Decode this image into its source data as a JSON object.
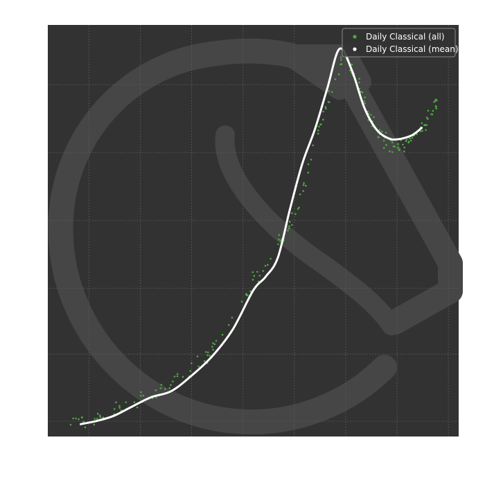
{
  "chart_data": {
    "type": "scatter",
    "title": "",
    "xlabel": "",
    "ylabel": "",
    "grid": true,
    "legend_position": "top-right",
    "xlim": [
      0,
      100
    ],
    "ylim": [
      0,
      100
    ],
    "colors": {
      "background": "#323232",
      "grid": "#5a5a5a",
      "watermark": "#464646",
      "all": "#4fa843",
      "mean": "#ffffff"
    },
    "series": [
      {
        "name": "Daily Classical (all)",
        "kind": "scatter",
        "spread": 1.8,
        "points_per_segment": 8,
        "x": [
          5,
          10,
          15,
          20,
          25,
          30,
          35,
          40,
          45,
          50,
          55,
          58,
          61,
          64,
          67,
          70,
          72,
          74,
          76,
          78,
          80,
          82,
          84,
          86,
          88,
          90,
          92,
          94,
          95
        ],
        "y": [
          3,
          4,
          5.5,
          7.5,
          10.5,
          12.5,
          16.5,
          21,
          28.5,
          38,
          45,
          49.5,
          56,
          67.5,
          78,
          86,
          93,
          89,
          85,
          79,
          75,
          72,
          71,
          70,
          72,
          74,
          76,
          80,
          82
        ]
      },
      {
        "name": "Daily Classical (mean)",
        "kind": "line",
        "x": [
          8,
          12,
          16,
          20,
          25,
          30,
          35,
          40,
          45,
          50,
          53,
          56,
          59,
          62,
          65,
          68,
          71,
          74,
          77,
          80,
          83,
          85,
          87,
          89,
          91
        ],
        "y": [
          3,
          3.8,
          5,
          7,
          9.5,
          11,
          14.8,
          19.5,
          26,
          35.5,
          38.8,
          43.5,
          55.5,
          66.5,
          74.6,
          84.5,
          94.2,
          89,
          80,
          74.6,
          72.4,
          72.2,
          72.6,
          73.4,
          75
        ]
      }
    ]
  }
}
